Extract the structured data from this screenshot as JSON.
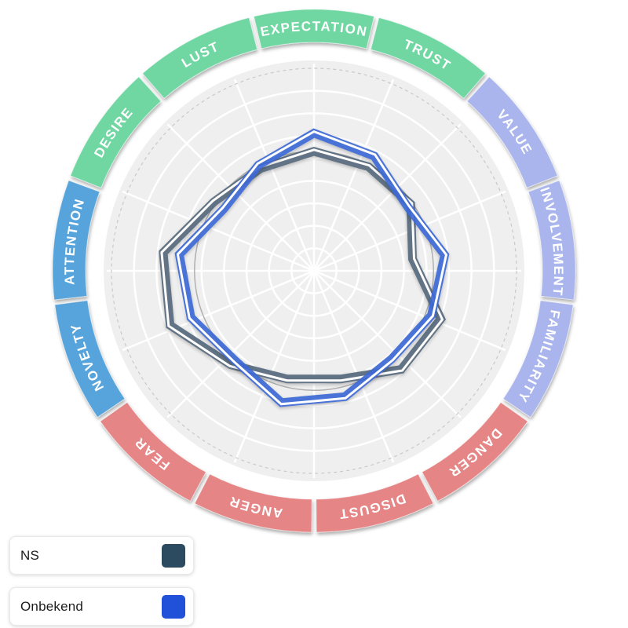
{
  "legend": {
    "items": [
      {
        "label": "NS",
        "color": "#2D4B60"
      },
      {
        "label": "Onbekend",
        "color": "#2051D8"
      }
    ]
  },
  "chart_data": {
    "type": "radar",
    "title": "",
    "categories": [
      "EXPECTATION",
      "TRUST",
      "VALUE",
      "INVOLVEMENT",
      "FAMILIARITY",
      "DANGER",
      "DISGUST",
      "ANGER",
      "FEAR",
      "NOVELTY",
      "ATTENTION",
      "DESIRE",
      "LUST"
    ],
    "segment_groups": [
      "green",
      "green",
      "periwinkle",
      "periwinkle",
      "periwinkle",
      "salmon",
      "salmon",
      "salmon",
      "salmon",
      "sky_blue",
      "sky_blue",
      "green",
      "green"
    ],
    "colors": {
      "green": "#6FD7A2",
      "periwinkle": "#A9B5EC",
      "salmon": "#E58585",
      "sky_blue": "#57A4DB",
      "plot_background": "#EFEFEF",
      "grid_line": "#FFFFFF",
      "dashed_ring": "#C9C9C9",
      "reference_circle": "#A5A5A5",
      "label_text": "#FFFFFF",
      "series_highlight": "#FFFFFF"
    },
    "series": [
      {
        "name": "NS",
        "line_color": "#54697B",
        "values": [
          59,
          58,
          58,
          49,
          67,
          65,
          55,
          55,
          62,
          76,
          75,
          60,
          57
        ]
      },
      {
        "name": "Onbekend",
        "line_color": "#3E69D5",
        "values": [
          68,
          64,
          56,
          65,
          62,
          58,
          64,
          67,
          59,
          65,
          67,
          54,
          59
        ]
      }
    ],
    "scale": {
      "min": 0,
      "max": 100,
      "grid_rings": 8,
      "grid_spokes": 16
    },
    "reference_circle_value": 59,
    "grid": true,
    "legend_position": "bottom-left"
  }
}
